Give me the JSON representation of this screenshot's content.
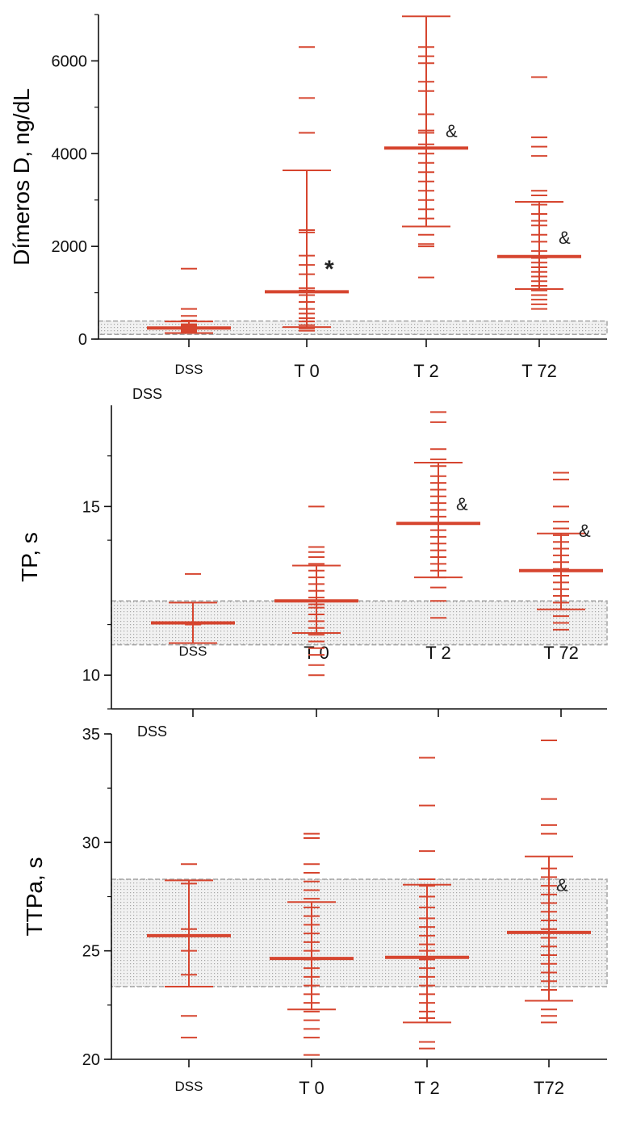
{
  "colors": {
    "series": "#d6452f",
    "axis": "#111111",
    "ref_band_fill": "#e3e3e3",
    "ref_band_stroke": "#a5a5a5",
    "text": "#111111"
  },
  "chart_data": [
    {
      "type": "scatter",
      "ylabel": "Dímeros D, ng/dL",
      "ylim": [
        0,
        7000
      ],
      "yticks": [
        0,
        2000,
        4000,
        6000
      ],
      "categories": [
        "DSS",
        "T 0",
        "T 2",
        "T 72"
      ],
      "reference_band": [
        100,
        390
      ],
      "stray_label": "DSS",
      "groups": [
        {
          "category": "DSS",
          "center": 240,
          "err_low": 130,
          "err_high": 380,
          "points": [
            150,
            170,
            190,
            210,
            230,
            250,
            270,
            290,
            320,
            400,
            500,
            650,
            1520
          ],
          "annotation": ""
        },
        {
          "category": "T 0",
          "center": 1020,
          "err_low": 260,
          "err_high": 3640,
          "points": [
            180,
            230,
            300,
            380,
            450,
            550,
            650,
            800,
            950,
            1050,
            1100,
            1400,
            1600,
            1800,
            2300,
            2350,
            4450,
            5200,
            6300
          ],
          "annotation": "*"
        },
        {
          "category": "T 2",
          "center": 4120,
          "err_low": 2430,
          "err_high": 6960,
          "points": [
            1330,
            2000,
            2050,
            2250,
            2600,
            2800,
            3000,
            3200,
            3400,
            3600,
            3800,
            4000,
            4200,
            4450,
            4500,
            4850,
            5350,
            5550,
            5950,
            6100,
            6300
          ],
          "annotation": "&"
        },
        {
          "category": "T 72",
          "center": 1780,
          "err_low": 1080,
          "err_high": 2960,
          "points": [
            650,
            750,
            850,
            950,
            1050,
            1150,
            1250,
            1350,
            1450,
            1550,
            1650,
            1750,
            1900,
            2100,
            2250,
            2450,
            2550,
            2700,
            2900,
            3100,
            3200,
            3950,
            4150,
            4350,
            5650
          ],
          "annotation": "&"
        }
      ]
    },
    {
      "type": "scatter",
      "ylabel": "TP, s",
      "ylim": [
        9,
        18
      ],
      "yticks": [
        10,
        15
      ],
      "categories": [
        "DSS",
        "T 0",
        "T 2",
        "T 72"
      ],
      "reference_band": [
        10.9,
        12.2
      ],
      "stray_label": "DSS",
      "groups": [
        {
          "category": "DSS",
          "center": 11.55,
          "err_low": 10.95,
          "err_high": 12.15,
          "points": [
            11.5,
            11.55,
            13.0
          ],
          "annotation": ""
        },
        {
          "category": "T 0",
          "center": 12.2,
          "err_low": 11.25,
          "err_high": 13.25,
          "points": [
            10.0,
            10.3,
            10.6,
            10.8,
            11.0,
            11.2,
            11.4,
            11.6,
            11.8,
            12.0,
            12.1,
            12.3,
            12.5,
            12.7,
            12.9,
            13.1,
            13.3,
            13.5,
            13.65,
            13.8,
            15.0
          ],
          "annotation": ""
        },
        {
          "category": "T 2",
          "center": 14.5,
          "err_low": 12.9,
          "err_high": 16.3,
          "points": [
            11.7,
            12.2,
            12.6,
            12.9,
            13.1,
            13.3,
            13.5,
            13.7,
            13.9,
            14.1,
            14.3,
            14.5,
            14.7,
            14.9,
            15.1,
            15.3,
            15.5,
            15.7,
            15.9,
            16.2,
            16.4,
            16.7,
            17.5,
            17.8
          ],
          "annotation": "&"
        },
        {
          "category": "T 72",
          "center": 13.1,
          "err_low": 11.95,
          "err_high": 14.2,
          "points": [
            11.35,
            11.55,
            11.75,
            11.95,
            12.15,
            12.35,
            12.55,
            12.75,
            12.95,
            13.15,
            13.35,
            13.55,
            13.75,
            13.95,
            14.15,
            14.35,
            14.55,
            15.0,
            15.8,
            16.0
          ],
          "annotation": "&"
        }
      ]
    },
    {
      "type": "scatter",
      "ylabel": "TTPa, s",
      "ylim": [
        20,
        35
      ],
      "yticks": [
        20,
        25,
        30,
        35
      ],
      "categories": [
        "DSS",
        "T 0",
        "T 2",
        "T72"
      ],
      "reference_band": [
        23.35,
        28.3
      ],
      "stray_label": "DSS",
      "groups": [
        {
          "category": "DSS",
          "center": 25.7,
          "err_low": 23.35,
          "err_high": 28.25,
          "points": [
            21.0,
            22.0,
            23.9,
            25.0,
            26.0,
            28.1,
            29.0
          ],
          "annotation": ""
        },
        {
          "category": "T 0",
          "center": 24.65,
          "err_low": 22.3,
          "err_high": 27.25,
          "points": [
            20.2,
            21.0,
            21.4,
            21.8,
            22.2,
            22.6,
            23.0,
            23.4,
            23.8,
            24.2,
            24.6,
            25.0,
            25.4,
            25.8,
            26.2,
            26.6,
            27.0,
            27.4,
            27.8,
            28.2,
            28.6,
            29.0,
            30.2,
            30.4
          ],
          "annotation": ""
        },
        {
          "category": "T 2",
          "center": 24.7,
          "err_low": 21.7,
          "err_high": 28.05,
          "points": [
            20.5,
            20.8,
            21.9,
            22.2,
            22.6,
            23.0,
            23.4,
            23.8,
            24.2,
            24.6,
            25.0,
            25.3,
            25.7,
            26.1,
            26.5,
            27.0,
            27.5,
            28.0,
            28.3,
            29.6,
            31.7,
            33.9
          ],
          "annotation": ""
        },
        {
          "category": "T72",
          "center": 25.85,
          "err_low": 22.7,
          "err_high": 29.35,
          "points": [
            21.7,
            22.0,
            22.3,
            23.2,
            23.6,
            24.0,
            24.4,
            24.8,
            25.2,
            25.6,
            26.0,
            26.4,
            26.8,
            27.2,
            27.6,
            28.0,
            28.4,
            28.8,
            30.4,
            30.8,
            32.0,
            34.7
          ],
          "annotation": "&"
        }
      ]
    }
  ]
}
